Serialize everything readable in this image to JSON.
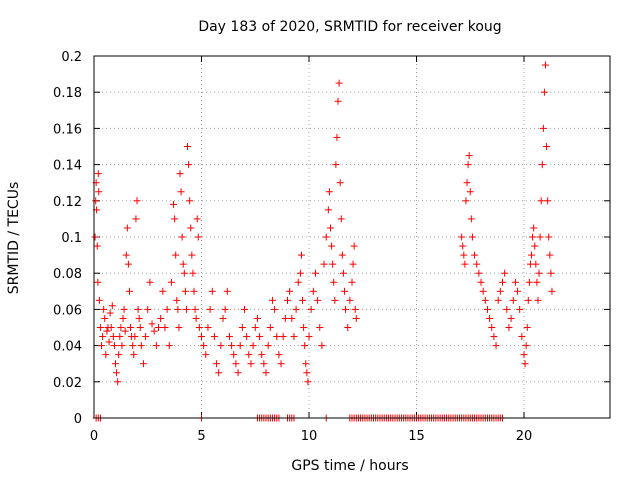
{
  "chart_data": {
    "type": "scatter",
    "title": "Day 183 of 2020, SRMTID for receiver koug",
    "xlabel": "GPS time / hours",
    "ylabel": "SRMTID / TECUs",
    "xlim": [
      0,
      24
    ],
    "ylim": [
      0,
      0.2
    ],
    "xticks": [
      0,
      5,
      10,
      15,
      20
    ],
    "xtick_labels": [
      "0",
      "5",
      "10",
      "15",
      "20"
    ],
    "yticks": [
      0,
      0.02,
      0.04,
      0.06,
      0.08,
      0.1,
      0.12,
      0.14,
      0.16,
      0.18,
      0.2
    ],
    "ytick_labels": [
      "0",
      "0.02",
      "0.04",
      "0.06",
      "0.08",
      "0.1",
      "0.12",
      "0.14",
      "0.16",
      "0.18",
      "0.2"
    ],
    "grid": true,
    "marker": "+",
    "color": "#ff0000",
    "series": [
      {
        "name": "SRMTID",
        "points": [
          [
            0.05,
            0.1
          ],
          [
            0.08,
            0.12
          ],
          [
            0.1,
            0.13
          ],
          [
            0.12,
            0.115
          ],
          [
            0.15,
            0.095
          ],
          [
            0.18,
            0.075
          ],
          [
            0.2,
            0.135
          ],
          [
            0.22,
            0.125
          ],
          [
            0.25,
            0.065
          ],
          [
            0.3,
            0.05
          ],
          [
            0.35,
            0.04
          ],
          [
            0.4,
            0.045
          ],
          [
            0.45,
            0.06
          ],
          [
            0.5,
            0.055
          ],
          [
            0.55,
            0.035
          ],
          [
            0.6,
            0.048
          ],
          [
            0.65,
            0.05
          ],
          [
            0.7,
            0.042
          ],
          [
            0.75,
            0.058
          ],
          [
            0.8,
            0.05
          ],
          [
            0.85,
            0.062
          ],
          [
            0.9,
            0.045
          ],
          [
            0.95,
            0.04
          ],
          [
            1.0,
            0.03
          ],
          [
            1.05,
            0.025
          ],
          [
            1.1,
            0.02
          ],
          [
            1.15,
            0.035
          ],
          [
            1.2,
            0.045
          ],
          [
            1.25,
            0.05
          ],
          [
            1.3,
            0.04
          ],
          [
            1.35,
            0.055
          ],
          [
            1.4,
            0.06
          ],
          [
            1.45,
            0.048
          ],
          [
            1.5,
            0.09
          ],
          [
            1.55,
            0.105
          ],
          [
            1.6,
            0.085
          ],
          [
            1.65,
            0.07
          ],
          [
            1.7,
            0.05
          ],
          [
            1.75,
            0.045
          ],
          [
            1.8,
            0.04
          ],
          [
            1.85,
            0.035
          ],
          [
            1.9,
            0.045
          ],
          [
            1.95,
            0.11
          ],
          [
            2.0,
            0.12
          ],
          [
            2.05,
            0.06
          ],
          [
            2.1,
            0.055
          ],
          [
            2.15,
            0.05
          ],
          [
            2.2,
            0.04
          ],
          [
            2.3,
            0.03
          ],
          [
            2.4,
            0.045
          ],
          [
            2.5,
            0.06
          ],
          [
            2.6,
            0.075
          ],
          [
            2.7,
            0.052
          ],
          [
            2.8,
            0.048
          ],
          [
            2.9,
            0.04
          ],
          [
            3.0,
            0.05
          ],
          [
            3.1,
            0.055
          ],
          [
            3.2,
            0.07
          ],
          [
            3.3,
            0.05
          ],
          [
            3.4,
            0.06
          ],
          [
            3.5,
            0.04
          ],
          [
            3.6,
            0.075
          ],
          [
            3.7,
            0.118
          ],
          [
            3.75,
            0.11
          ],
          [
            3.8,
            0.09
          ],
          [
            3.85,
            0.065
          ],
          [
            3.9,
            0.06
          ],
          [
            3.95,
            0.05
          ],
          [
            4.0,
            0.135
          ],
          [
            4.05,
            0.125
          ],
          [
            4.1,
            0.1
          ],
          [
            4.15,
            0.085
          ],
          [
            4.2,
            0.08
          ],
          [
            4.25,
            0.07
          ],
          [
            4.3,
            0.06
          ],
          [
            4.35,
            0.15
          ],
          [
            4.4,
            0.14
          ],
          [
            4.45,
            0.12
          ],
          [
            4.5,
            0.105
          ],
          [
            4.55,
            0.09
          ],
          [
            4.6,
            0.08
          ],
          [
            4.65,
            0.07
          ],
          [
            4.7,
            0.06
          ],
          [
            4.75,
            0.055
          ],
          [
            4.8,
            0.11
          ],
          [
            4.85,
            0.1
          ],
          [
            4.9,
            0.05
          ],
          [
            5.0,
            0.045
          ],
          [
            5.1,
            0.04
          ],
          [
            5.2,
            0.035
          ],
          [
            5.3,
            0.05
          ],
          [
            5.4,
            0.06
          ],
          [
            5.5,
            0.07
          ],
          [
            5.6,
            0.045
          ],
          [
            5.7,
            0.03
          ],
          [
            5.8,
            0.025
          ],
          [
            5.9,
            0.04
          ],
          [
            6.0,
            0.055
          ],
          [
            6.1,
            0.06
          ],
          [
            6.2,
            0.07
          ],
          [
            6.3,
            0.045
          ],
          [
            6.4,
            0.04
          ],
          [
            6.5,
            0.035
          ],
          [
            6.6,
            0.03
          ],
          [
            6.7,
            0.025
          ],
          [
            6.8,
            0.04
          ],
          [
            6.9,
            0.05
          ],
          [
            7.0,
            0.06
          ],
          [
            7.1,
            0.045
          ],
          [
            7.2,
            0.035
          ],
          [
            7.3,
            0.03
          ],
          [
            7.4,
            0.04
          ],
          [
            7.5,
            0.05
          ],
          [
            7.6,
            0.055
          ],
          [
            7.7,
            0.045
          ],
          [
            7.8,
            0.035
          ],
          [
            7.9,
            0.03
          ],
          [
            8.0,
            0.025
          ],
          [
            8.1,
            0.04
          ],
          [
            8.2,
            0.05
          ],
          [
            8.3,
            0.065
          ],
          [
            8.4,
            0.06
          ],
          [
            8.5,
            0.045
          ],
          [
            8.6,
            0.035
          ],
          [
            8.7,
            0.03
          ],
          [
            8.8,
            0.045
          ],
          [
            8.9,
            0.055
          ],
          [
            9.0,
            0.065
          ],
          [
            9.1,
            0.07
          ],
          [
            9.2,
            0.055
          ],
          [
            9.3,
            0.045
          ],
          [
            9.4,
            0.06
          ],
          [
            9.5,
            0.075
          ],
          [
            9.6,
            0.08
          ],
          [
            9.65,
            0.09
          ],
          [
            9.7,
            0.065
          ],
          [
            9.75,
            0.05
          ],
          [
            9.8,
            0.04
          ],
          [
            9.85,
            0.03
          ],
          [
            9.9,
            0.025
          ],
          [
            9.95,
            0.02
          ],
          [
            10.0,
            0.045
          ],
          [
            10.1,
            0.06
          ],
          [
            10.2,
            0.07
          ],
          [
            10.3,
            0.08
          ],
          [
            10.4,
            0.065
          ],
          [
            10.5,
            0.05
          ],
          [
            10.6,
            0.04
          ],
          [
            10.7,
            0.085
          ],
          [
            10.8,
            0.1
          ],
          [
            10.9,
            0.115
          ],
          [
            10.95,
            0.125
          ],
          [
            11.0,
            0.105
          ],
          [
            11.05,
            0.095
          ],
          [
            11.1,
            0.085
          ],
          [
            11.15,
            0.075
          ],
          [
            11.2,
            0.065
          ],
          [
            11.25,
            0.14
          ],
          [
            11.3,
            0.155
          ],
          [
            11.35,
            0.175
          ],
          [
            11.4,
            0.185
          ],
          [
            11.45,
            0.13
          ],
          [
            11.5,
            0.11
          ],
          [
            11.55,
            0.09
          ],
          [
            11.6,
            0.08
          ],
          [
            11.65,
            0.07
          ],
          [
            11.7,
            0.06
          ],
          [
            11.8,
            0.05
          ],
          [
            11.9,
            0.065
          ],
          [
            12.0,
            0.075
          ],
          [
            12.05,
            0.085
          ],
          [
            12.1,
            0.095
          ],
          [
            12.15,
            0.06
          ],
          [
            12.2,
            0.055
          ],
          [
            17.1,
            0.1
          ],
          [
            17.15,
            0.095
          ],
          [
            17.2,
            0.09
          ],
          [
            17.25,
            0.085
          ],
          [
            17.3,
            0.12
          ],
          [
            17.35,
            0.13
          ],
          [
            17.4,
            0.14
          ],
          [
            17.45,
            0.145
          ],
          [
            17.5,
            0.125
          ],
          [
            17.55,
            0.11
          ],
          [
            17.6,
            0.1
          ],
          [
            17.7,
            0.09
          ],
          [
            17.8,
            0.085
          ],
          [
            17.9,
            0.08
          ],
          [
            18.0,
            0.075
          ],
          [
            18.1,
            0.07
          ],
          [
            18.2,
            0.065
          ],
          [
            18.3,
            0.06
          ],
          [
            18.4,
            0.055
          ],
          [
            18.5,
            0.05
          ],
          [
            18.6,
            0.045
          ],
          [
            18.7,
            0.04
          ],
          [
            18.8,
            0.065
          ],
          [
            18.9,
            0.07
          ],
          [
            19.0,
            0.075
          ],
          [
            19.1,
            0.08
          ],
          [
            19.2,
            0.06
          ],
          [
            19.3,
            0.05
          ],
          [
            19.4,
            0.055
          ],
          [
            19.5,
            0.065
          ],
          [
            19.6,
            0.075
          ],
          [
            19.7,
            0.07
          ],
          [
            19.8,
            0.06
          ],
          [
            19.9,
            0.045
          ],
          [
            20.0,
            0.035
          ],
          [
            20.05,
            0.03
          ],
          [
            20.1,
            0.04
          ],
          [
            20.15,
            0.05
          ],
          [
            20.2,
            0.065
          ],
          [
            20.25,
            0.075
          ],
          [
            20.3,
            0.085
          ],
          [
            20.35,
            0.09
          ],
          [
            20.4,
            0.1
          ],
          [
            20.45,
            0.105
          ],
          [
            20.5,
            0.095
          ],
          [
            20.55,
            0.085
          ],
          [
            20.6,
            0.075
          ],
          [
            20.65,
            0.065
          ],
          [
            20.7,
            0.08
          ],
          [
            20.75,
            0.1
          ],
          [
            20.8,
            0.12
          ],
          [
            20.85,
            0.14
          ],
          [
            20.9,
            0.16
          ],
          [
            20.95,
            0.18
          ],
          [
            21.0,
            0.195
          ],
          [
            21.05,
            0.15
          ],
          [
            21.1,
            0.12
          ],
          [
            21.15,
            0.1
          ],
          [
            21.2,
            0.09
          ],
          [
            21.25,
            0.08
          ],
          [
            21.3,
            0.07
          ]
        ],
        "zero_points": [
          0.1,
          0.2,
          0.3,
          5.0,
          7.6,
          7.7,
          7.8,
          7.9,
          8.0,
          8.1,
          8.2,
          8.3,
          8.4,
          8.5,
          8.6,
          9.0,
          9.1,
          9.2,
          9.3,
          10.8,
          11.9,
          12.0,
          12.1,
          12.2,
          12.3,
          12.4,
          12.5,
          12.6,
          12.7,
          12.8,
          12.9,
          13.0,
          13.1,
          13.2,
          13.3,
          13.4,
          13.5,
          13.6,
          13.7,
          13.8,
          13.9,
          14.0,
          14.1,
          14.2,
          14.3,
          14.4,
          14.5,
          14.6,
          14.7,
          14.8,
          14.9,
          15.0,
          15.1,
          15.2,
          15.3,
          15.4,
          15.5,
          15.6,
          15.7,
          15.8,
          15.9,
          16.0,
          16.1,
          16.2,
          16.3,
          16.4,
          16.5,
          16.6,
          16.7,
          16.8,
          16.9,
          17.0,
          17.1,
          17.2,
          17.3,
          17.4,
          17.5,
          17.6,
          17.7,
          17.8,
          17.9,
          18.0,
          18.1,
          18.2,
          18.3,
          18.4,
          18.5,
          18.6,
          18.7,
          18.8,
          18.9,
          19.0
        ]
      }
    ]
  }
}
